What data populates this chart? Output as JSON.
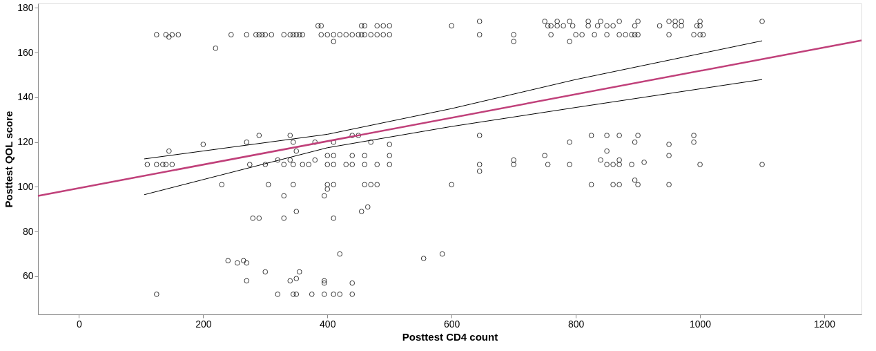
{
  "chart_data": {
    "type": "scatter",
    "xlabel": "Posttest CD4 count",
    "ylabel": "Posttest QOL score",
    "xlim": [
      -66,
      1260
    ],
    "ylim": [
      43,
      182
    ],
    "xticks": [
      0,
      200,
      400,
      600,
      800,
      1000,
      1200
    ],
    "yticks": [
      60,
      80,
      100,
      120,
      140,
      160,
      180
    ],
    "grid": false,
    "series": [
      {
        "marker": "circle",
        "color": "#000000",
        "x": [
          125,
          140,
          150,
          160,
          245,
          270,
          285,
          290,
          295,
          300,
          310,
          330,
          340,
          345,
          350,
          355,
          360,
          390,
          400,
          410,
          420,
          430,
          440,
          450,
          455,
          460,
          470,
          480,
          490,
          500,
          645,
          700,
          760,
          800,
          810,
          830,
          850,
          870,
          880,
          890,
          895,
          900,
          950,
          990,
          1000,
          1005,
          145,
          220,
          410,
          700,
          790,
          385,
          390,
          455,
          460,
          480,
          490,
          500,
          600,
          755,
          760,
          770,
          780,
          795,
          820,
          835,
          850,
          860,
          895,
          935,
          960,
          970,
          995,
          1000,
          645,
          750,
          770,
          790,
          820,
          840,
          870,
          900,
          950,
          960,
          970,
          1000,
          1100,
          290,
          340,
          440,
          450,
          645,
          825,
          850,
          870,
          900,
          990,
          270,
          345,
          380,
          410,
          470,
          790,
          895,
          990,
          200,
          500,
          950,
          145,
          350,
          850,
          400,
          410,
          440,
          460,
          500,
          750,
          950,
          320,
          340,
          380,
          700,
          840,
          870,
          110,
          125,
          135,
          140,
          150,
          275,
          300,
          330,
          345,
          360,
          370,
          400,
          410,
          430,
          440,
          460,
          480,
          500,
          645,
          700,
          755,
          790,
          850,
          860,
          870,
          890,
          1000,
          1100,
          910,
          645,
          230,
          305,
          345,
          400,
          410,
          460,
          470,
          480,
          600,
          825,
          860,
          870,
          900,
          950,
          895,
          400,
          330,
          395,
          465,
          350,
          455,
          280,
          290,
          330,
          410,
          420,
          585,
          555,
          240,
          265,
          255,
          270,
          300,
          355,
          270,
          340,
          395,
          395,
          440,
          350,
          125,
          320,
          345,
          350,
          375,
          395,
          410,
          420,
          440
        ],
        "values": [
          168,
          168,
          168,
          168,
          168,
          168,
          168,
          168,
          168,
          168,
          168,
          168,
          168,
          168,
          168,
          168,
          168,
          168,
          168,
          168,
          168,
          168,
          168,
          168,
          168,
          168,
          168,
          168,
          168,
          168,
          168,
          168,
          168,
          168,
          168,
          168,
          168,
          168,
          168,
          168,
          168,
          168,
          168,
          168,
          168,
          168,
          167,
          162,
          165,
          165,
          165,
          172,
          172,
          172,
          172,
          172,
          172,
          172,
          172,
          172,
          172,
          172,
          172,
          172,
          172,
          172,
          172,
          172,
          172,
          172,
          172,
          172,
          172,
          172,
          174,
          174,
          174,
          174,
          174,
          174,
          174,
          174,
          174,
          174,
          174,
          174,
          174,
          123,
          123,
          123,
          123,
          123,
          123,
          123,
          123,
          123,
          123,
          120,
          120,
          120,
          120,
          120,
          120,
          120,
          120,
          119,
          119,
          119,
          116,
          116,
          116,
          114,
          114,
          114,
          114,
          114,
          114,
          114,
          112,
          112,
          112,
          112,
          112,
          112,
          110,
          110,
          110,
          110,
          110,
          110,
          110,
          110,
          110,
          110,
          110,
          110,
          110,
          110,
          110,
          110,
          110,
          110,
          110,
          110,
          110,
          110,
          110,
          110,
          110,
          110,
          110,
          110,
          111,
          107,
          101,
          101,
          101,
          101,
          101,
          101,
          101,
          101,
          101,
          101,
          101,
          101,
          101,
          101,
          103,
          99,
          96,
          96,
          91,
          89,
          89,
          86,
          86,
          86,
          86,
          70,
          70,
          68,
          67,
          67,
          66,
          66,
          62,
          62,
          58,
          58,
          58,
          57,
          57,
          59,
          52,
          52,
          52,
          52,
          52,
          52,
          52,
          52,
          52
        ]
      },
      {
        "type": "line",
        "line_style": "solid",
        "color": "#c0407a",
        "x": [
          -66,
          1260
        ],
        "values": [
          96,
          165.5
        ]
      },
      {
        "type": "line",
        "color": "#000000",
        "x": [
          105,
          400,
          600,
          800,
          1100
        ],
        "line_style": "solid",
        "values": [
          112.5,
          123.5,
          135,
          148,
          165.3
        ]
      },
      {
        "type": "line",
        "color": "#000000",
        "x": [
          105,
          400,
          600,
          800,
          1100
        ],
        "line_style": "solid",
        "values": [
          96.5,
          117.5,
          127,
          135.5,
          148
        ]
      }
    ]
  }
}
